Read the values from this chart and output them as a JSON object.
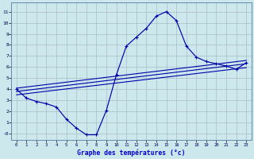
{
  "title": "Graphe des températures (°c)",
  "bg_color": "#cce8ec",
  "grid_color": "#aabbc8",
  "line_color": "#0000aa",
  "xlabel_color": "#0000cc",
  "main_hours": [
    0,
    1,
    2,
    3,
    4,
    5,
    6,
    7,
    8,
    9,
    10,
    11,
    12,
    13,
    14,
    15,
    16,
    17,
    18,
    19,
    20,
    21,
    22,
    23
  ],
  "main_vals": [
    4.0,
    3.2,
    2.9,
    2.7,
    2.4,
    1.3,
    0.5,
    -0.1,
    -0.1,
    2.1,
    5.3,
    7.9,
    8.7,
    9.5,
    10.6,
    11.0,
    10.2,
    7.9,
    6.9,
    6.5,
    6.3,
    6.1,
    5.8,
    6.4
  ],
  "trend1_x": [
    0,
    23
  ],
  "trend1_y": [
    4.1,
    6.6
  ],
  "trend2_x": [
    0,
    23
  ],
  "trend2_y": [
    3.8,
    6.3
  ],
  "trend3_x": [
    0,
    23
  ],
  "trend3_y": [
    3.5,
    5.95
  ],
  "ylim": [
    -0.6,
    11.8
  ],
  "xlim": [
    -0.5,
    23.5
  ],
  "yticks": [
    0,
    1,
    2,
    3,
    4,
    5,
    6,
    7,
    8,
    9,
    10,
    11
  ],
  "ytick_labels": [
    "-0",
    "1",
    "2",
    "3",
    "4",
    "5",
    "6",
    "7",
    "8",
    "9",
    "10",
    "11"
  ],
  "xticks": [
    0,
    1,
    2,
    3,
    4,
    5,
    6,
    7,
    8,
    9,
    10,
    11,
    12,
    13,
    14,
    15,
    16,
    17,
    18,
    19,
    20,
    21,
    22,
    23
  ]
}
